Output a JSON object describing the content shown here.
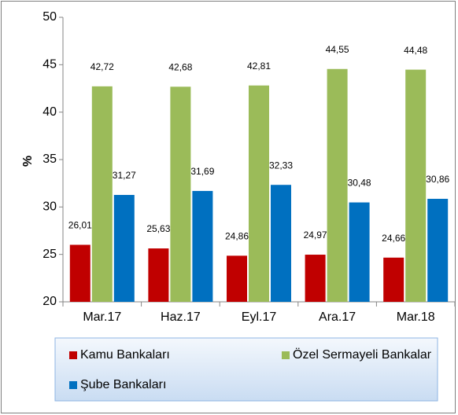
{
  "chart_data": {
    "type": "bar",
    "y_label": "%",
    "categories": [
      "Mar.17",
      "Haz.17",
      "Eyl.17",
      "Ara.17",
      "Mar.18"
    ],
    "series": [
      {
        "name": "Kamu Bankaları",
        "color": "#c00000",
        "values": [
          26.01,
          25.63,
          24.86,
          24.97,
          24.66
        ],
        "value_labels": [
          "26,01",
          "25,63",
          "24,86",
          "24,97",
          "24,66"
        ]
      },
      {
        "name": "Özel Sermayeli Bankalar",
        "color": "#9bbb59",
        "values": [
          42.72,
          42.68,
          42.81,
          44.55,
          44.48
        ],
        "value_labels": [
          "42,72",
          "42,68",
          "42,81",
          "44,55",
          "44,48"
        ]
      },
      {
        "name": "Şube Bankaları",
        "color": "#0070c0",
        "values": [
          31.27,
          31.69,
          32.33,
          30.48,
          30.86
        ],
        "value_labels": [
          "31,27",
          "31,69",
          "32,33",
          "30,48",
          "30,86"
        ]
      }
    ],
    "ylim": [
      20,
      50
    ],
    "yticks": [
      20,
      25,
      30,
      35,
      40,
      45,
      50
    ],
    "grid": false
  }
}
